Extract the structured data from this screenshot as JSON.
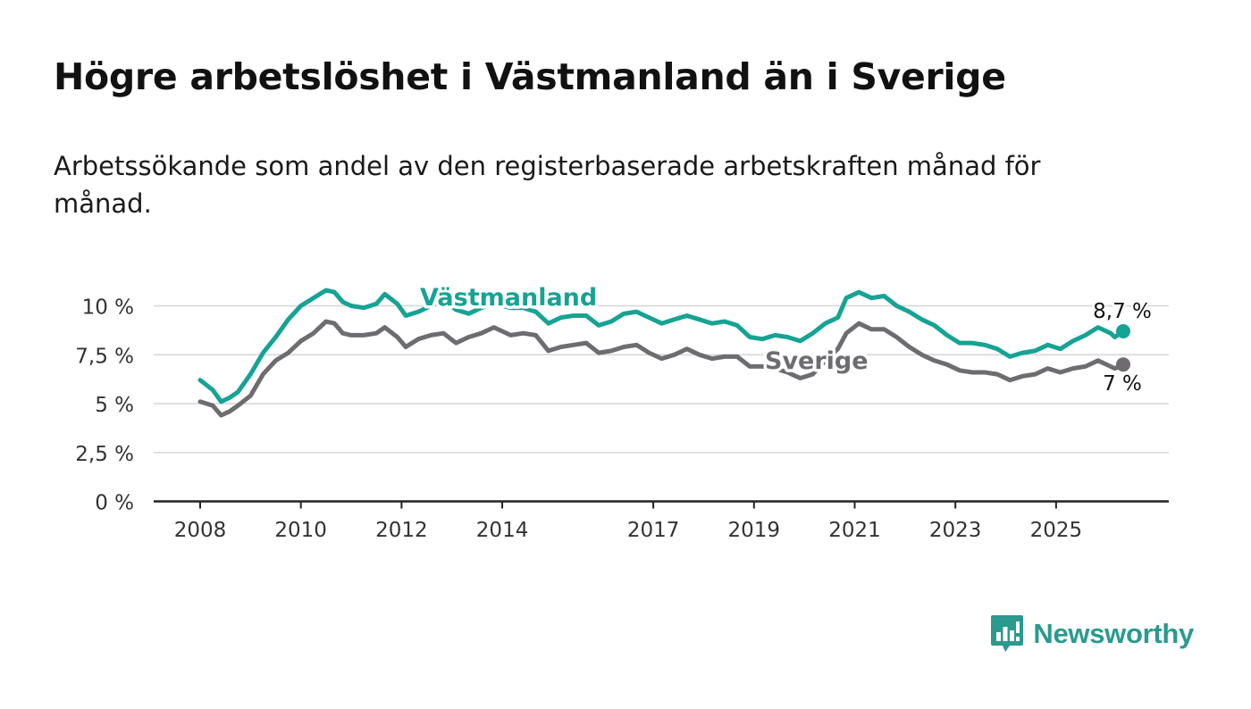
{
  "header": {
    "title": "Högre arbetslöshet i Västmanland än i Sverige",
    "subtitle": "Arbetssökande som andel av den registerbaserade arbetskraften månad för månad."
  },
  "brand": {
    "name": "Newsworthy",
    "icon": "newsworthy-bar-chart-icon"
  },
  "chart_data": {
    "type": "line",
    "x_ticks": [
      "2008",
      "2010",
      "2012",
      "2014",
      "2017",
      "2019",
      "2021",
      "2023",
      "2025"
    ],
    "y_ticks": [
      "0 %",
      "2,5 %",
      "5 %",
      "7,5 %",
      "10 %"
    ],
    "ylim": [
      0,
      10
    ],
    "grid": true,
    "series": [
      {
        "name": "Västmanland",
        "color": "#16a394",
        "end_label": "8,7 %",
        "points": [
          [
            "2008-01",
            6.2
          ],
          [
            "2008-04",
            5.7
          ],
          [
            "2008-06",
            5.1
          ],
          [
            "2008-08",
            5.3
          ],
          [
            "2008-10",
            5.6
          ],
          [
            "2009-01",
            6.5
          ],
          [
            "2009-04",
            7.6
          ],
          [
            "2009-07",
            8.4
          ],
          [
            "2009-10",
            9.3
          ],
          [
            "2010-01",
            10.0
          ],
          [
            "2010-04",
            10.4
          ],
          [
            "2010-07",
            10.8
          ],
          [
            "2010-09",
            10.7
          ],
          [
            "2010-11",
            10.2
          ],
          [
            "2011-01",
            10.0
          ],
          [
            "2011-04",
            9.9
          ],
          [
            "2011-07",
            10.1
          ],
          [
            "2011-09",
            10.6
          ],
          [
            "2011-12",
            10.1
          ],
          [
            "2012-02",
            9.5
          ],
          [
            "2012-05",
            9.7
          ],
          [
            "2012-08",
            10.0
          ],
          [
            "2012-11",
            10.3
          ],
          [
            "2013-02",
            9.8
          ],
          [
            "2013-05",
            9.6
          ],
          [
            "2013-08",
            9.9
          ],
          [
            "2013-11",
            10.1
          ],
          [
            "2014-03",
            9.9
          ],
          [
            "2014-06",
            9.9
          ],
          [
            "2014-09",
            9.7
          ],
          [
            "2014-12",
            9.1
          ],
          [
            "2015-03",
            9.4
          ],
          [
            "2015-06",
            9.5
          ],
          [
            "2015-09",
            9.5
          ],
          [
            "2015-12",
            9.0
          ],
          [
            "2016-03",
            9.2
          ],
          [
            "2016-06",
            9.6
          ],
          [
            "2016-09",
            9.7
          ],
          [
            "2016-12",
            9.4
          ],
          [
            "2017-03",
            9.1
          ],
          [
            "2017-06",
            9.3
          ],
          [
            "2017-09",
            9.5
          ],
          [
            "2017-12",
            9.3
          ],
          [
            "2018-03",
            9.1
          ],
          [
            "2018-06",
            9.2
          ],
          [
            "2018-09",
            9.0
          ],
          [
            "2018-12",
            8.4
          ],
          [
            "2019-03",
            8.3
          ],
          [
            "2019-06",
            8.5
          ],
          [
            "2019-09",
            8.4
          ],
          [
            "2019-12",
            8.2
          ],
          [
            "2020-03",
            8.6
          ],
          [
            "2020-06",
            9.1
          ],
          [
            "2020-09",
            9.4
          ],
          [
            "2020-11",
            10.4
          ],
          [
            "2021-02",
            10.7
          ],
          [
            "2021-05",
            10.4
          ],
          [
            "2021-08",
            10.5
          ],
          [
            "2021-11",
            10.0
          ],
          [
            "2022-02",
            9.7
          ],
          [
            "2022-05",
            9.3
          ],
          [
            "2022-08",
            9.0
          ],
          [
            "2022-11",
            8.5
          ],
          [
            "2023-02",
            8.1
          ],
          [
            "2023-05",
            8.1
          ],
          [
            "2023-08",
            8.0
          ],
          [
            "2023-11",
            7.8
          ],
          [
            "2024-02",
            7.4
          ],
          [
            "2024-05",
            7.6
          ],
          [
            "2024-08",
            7.7
          ],
          [
            "2024-11",
            8.0
          ],
          [
            "2025-02",
            7.8
          ],
          [
            "2025-05",
            8.2
          ],
          [
            "2025-08",
            8.5
          ],
          [
            "2025-11",
            8.9
          ],
          [
            "2026-02",
            8.6
          ],
          [
            "2026-03",
            8.4
          ],
          [
            "2026-05",
            8.7
          ]
        ]
      },
      {
        "name": "Sverige",
        "color": "#6e6c70",
        "end_label": "7 %",
        "points": [
          [
            "2008-01",
            5.1
          ],
          [
            "2008-04",
            4.9
          ],
          [
            "2008-06",
            4.4
          ],
          [
            "2008-08",
            4.6
          ],
          [
            "2008-10",
            4.9
          ],
          [
            "2009-01",
            5.4
          ],
          [
            "2009-04",
            6.5
          ],
          [
            "2009-07",
            7.2
          ],
          [
            "2009-10",
            7.6
          ],
          [
            "2010-01",
            8.2
          ],
          [
            "2010-04",
            8.6
          ],
          [
            "2010-07",
            9.2
          ],
          [
            "2010-09",
            9.1
          ],
          [
            "2010-11",
            8.6
          ],
          [
            "2011-01",
            8.5
          ],
          [
            "2011-04",
            8.5
          ],
          [
            "2011-07",
            8.6
          ],
          [
            "2011-09",
            8.9
          ],
          [
            "2011-12",
            8.4
          ],
          [
            "2012-02",
            7.9
          ],
          [
            "2012-05",
            8.3
          ],
          [
            "2012-08",
            8.5
          ],
          [
            "2012-11",
            8.6
          ],
          [
            "2013-02",
            8.1
          ],
          [
            "2013-05",
            8.4
          ],
          [
            "2013-08",
            8.6
          ],
          [
            "2013-11",
            8.9
          ],
          [
            "2014-03",
            8.5
          ],
          [
            "2014-06",
            8.6
          ],
          [
            "2014-09",
            8.5
          ],
          [
            "2014-12",
            7.7
          ],
          [
            "2015-03",
            7.9
          ],
          [
            "2015-06",
            8.0
          ],
          [
            "2015-09",
            8.1
          ],
          [
            "2015-12",
            7.6
          ],
          [
            "2016-03",
            7.7
          ],
          [
            "2016-06",
            7.9
          ],
          [
            "2016-09",
            8.0
          ],
          [
            "2016-12",
            7.6
          ],
          [
            "2017-03",
            7.3
          ],
          [
            "2017-06",
            7.5
          ],
          [
            "2017-09",
            7.8
          ],
          [
            "2017-12",
            7.5
          ],
          [
            "2018-03",
            7.3
          ],
          [
            "2018-06",
            7.4
          ],
          [
            "2018-09",
            7.4
          ],
          [
            "2018-12",
            6.9
          ],
          [
            "2019-03",
            6.9
          ],
          [
            "2019-06",
            6.8
          ],
          [
            "2019-09",
            6.6
          ],
          [
            "2019-12",
            6.3
          ],
          [
            "2020-03",
            6.5
          ],
          [
            "2020-06",
            7.2
          ],
          [
            "2020-09",
            7.8
          ],
          [
            "2020-11",
            8.6
          ],
          [
            "2021-02",
            9.1
          ],
          [
            "2021-05",
            8.8
          ],
          [
            "2021-08",
            8.8
          ],
          [
            "2021-11",
            8.4
          ],
          [
            "2022-02",
            7.9
          ],
          [
            "2022-05",
            7.5
          ],
          [
            "2022-08",
            7.2
          ],
          [
            "2022-11",
            7.0
          ],
          [
            "2023-02",
            6.7
          ],
          [
            "2023-05",
            6.6
          ],
          [
            "2023-08",
            6.6
          ],
          [
            "2023-11",
            6.5
          ],
          [
            "2024-02",
            6.2
          ],
          [
            "2024-05",
            6.4
          ],
          [
            "2024-08",
            6.5
          ],
          [
            "2024-11",
            6.8
          ],
          [
            "2025-02",
            6.6
          ],
          [
            "2025-05",
            6.8
          ],
          [
            "2025-08",
            6.9
          ],
          [
            "2025-11",
            7.2
          ],
          [
            "2026-02",
            6.9
          ],
          [
            "2026-03",
            6.8
          ],
          [
            "2026-05",
            7.0
          ]
        ]
      }
    ]
  }
}
